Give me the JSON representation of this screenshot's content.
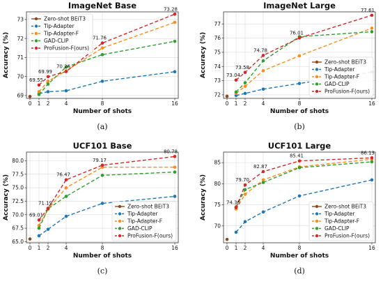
{
  "chart_data": [
    {
      "type": "line",
      "panel_label": "(a)",
      "title": "ImageNet Base",
      "xlabel": "Number of shots",
      "ylabel": "Accuracy (%)",
      "x_ticks": [
        0,
        1,
        2,
        4,
        8,
        16
      ],
      "y_ticks": [
        69,
        70,
        71,
        72,
        73
      ],
      "xlim": [
        0,
        16
      ],
      "ylim": [
        68.85,
        73.4
      ],
      "legend_position": "top-left",
      "series": [
        {
          "name": "Zero-shot BEiT3",
          "color": "#8c4a1e",
          "style": "solid",
          "x": [
            0
          ],
          "y": [
            68.95
          ]
        },
        {
          "name": "Tip-Adapter",
          "color": "#1f77b4",
          "style": "dashed",
          "x": [
            1,
            2,
            4,
            8,
            16
          ],
          "y": [
            69.1,
            69.2,
            69.25,
            69.75,
            70.25
          ]
        },
        {
          "name": "Tip-Adapter-F",
          "color": "#ff8c1a",
          "style": "dashed",
          "x": [
            1,
            2,
            4,
            8,
            16
          ],
          "y": [
            69.2,
            69.75,
            70.3,
            71.5,
            72.85
          ]
        },
        {
          "name": "GAD-CLIP",
          "color": "#2ca02c",
          "style": "dashed",
          "x": [
            1,
            2,
            4,
            8,
            16
          ],
          "y": [
            69.05,
            69.6,
            70.5,
            71.15,
            71.85
          ]
        },
        {
          "name": "ProFusion-F(ours)",
          "color": "#d62728",
          "style": "dashed",
          "x": [
            1,
            2,
            4,
            8,
            16
          ],
          "y": [
            69.55,
            69.99,
            70.26,
            71.76,
            73.28
          ]
        }
      ],
      "annotations": [
        {
          "x": 1,
          "y": 69.55,
          "text": "69.55"
        },
        {
          "x": 2,
          "y": 69.99,
          "text": "69.99"
        },
        {
          "x": 4,
          "y": 70.26,
          "text": "70.26"
        },
        {
          "x": 8,
          "y": 71.76,
          "text": "71.76"
        },
        {
          "x": 16,
          "y": 73.28,
          "text": "73.28"
        }
      ]
    },
    {
      "type": "line",
      "panel_label": "(b)",
      "title": "ImageNet Large",
      "xlabel": "Number of shots",
      "ylabel": "Accuracy (%)",
      "x_ticks": [
        0,
        1,
        2,
        4,
        8,
        16
      ],
      "y_ticks": [
        72,
        73,
        74,
        75,
        76,
        77
      ],
      "xlim": [
        0,
        16
      ],
      "ylim": [
        71.75,
        77.85
      ],
      "legend_position": "bottom-right",
      "series": [
        {
          "name": "Zero-shot BEiT3",
          "color": "#8c4a1e",
          "style": "solid",
          "x": [
            0
          ],
          "y": [
            71.9
          ]
        },
        {
          "name": "Tip-Adapter",
          "color": "#1f77b4",
          "style": "dashed",
          "x": [
            1,
            2,
            4,
            8,
            16
          ],
          "y": [
            71.95,
            72.1,
            72.4,
            72.8,
            73.6
          ]
        },
        {
          "name": "Tip-Adapter-F",
          "color": "#ff8c1a",
          "style": "dashed",
          "x": [
            1,
            2,
            4,
            8,
            16
          ],
          "y": [
            72.1,
            72.6,
            73.7,
            74.75,
            76.7
          ]
        },
        {
          "name": "GAD-CLIP",
          "color": "#2ca02c",
          "style": "dashed",
          "x": [
            1,
            2,
            4,
            8,
            16
          ],
          "y": [
            72.2,
            72.85,
            74.4,
            76.1,
            76.45
          ]
        },
        {
          "name": "ProFusion-F(ours)",
          "color": "#d62728",
          "style": "dashed",
          "x": [
            1,
            2,
            4,
            8,
            16
          ],
          "y": [
            73.04,
            73.58,
            74.78,
            76.01,
            77.61
          ]
        }
      ],
      "annotations": [
        {
          "x": 1,
          "y": 73.04,
          "text": "73.04"
        },
        {
          "x": 2,
          "y": 73.58,
          "text": "73.58"
        },
        {
          "x": 4,
          "y": 74.78,
          "text": "74.78"
        },
        {
          "x": 8,
          "y": 76.01,
          "text": "76.01"
        },
        {
          "x": 16,
          "y": 77.61,
          "text": "77.61"
        }
      ]
    },
    {
      "type": "line",
      "panel_label": "(c)",
      "title": "UCF101 Base",
      "xlabel": "Number of shots",
      "ylabel": "Accuracy (%)",
      "x_ticks": [
        0,
        1,
        2,
        4,
        8,
        16
      ],
      "y_ticks": [
        65.0,
        67.5,
        70.0,
        72.5,
        75.0,
        77.5,
        80.0
      ],
      "y_tick_labels": [
        "65.0",
        "67.5",
        "70.0",
        "72.5",
        "75.0",
        "77.5",
        "80.0"
      ],
      "xlim": [
        0,
        16
      ],
      "ylim": [
        64.8,
        81.6
      ],
      "legend_position": "bottom-right",
      "series": [
        {
          "name": "Zero-shot BEiT3",
          "color": "#8c4a1e",
          "style": "solid",
          "x": [
            0
          ],
          "y": [
            65.5
          ]
        },
        {
          "name": "Tip-Adapter",
          "color": "#1f77b4",
          "style": "dashed",
          "x": [
            1,
            2,
            4,
            8,
            16
          ],
          "y": [
            66.1,
            67.3,
            69.7,
            72.1,
            73.4
          ]
        },
        {
          "name": "Tip-Adapter-F",
          "color": "#ff8c1a",
          "style": "dashed",
          "x": [
            1,
            2,
            4,
            8,
            16
          ],
          "y": [
            68.0,
            71.0,
            75.0,
            78.8,
            78.8
          ]
        },
        {
          "name": "GAD-CLIP",
          "color": "#2ca02c",
          "style": "dashed",
          "x": [
            1,
            2,
            4,
            8,
            16
          ],
          "y": [
            67.5,
            71.1,
            73.4,
            77.3,
            77.9
          ]
        },
        {
          "name": "ProFusion-F(ours)",
          "color": "#d62728",
          "style": "dashed",
          "x": [
            1,
            2,
            4,
            8,
            16
          ],
          "y": [
            69.01,
            71.19,
            76.47,
            79.17,
            80.78
          ]
        }
      ],
      "annotations": [
        {
          "x": 1,
          "y": 69.01,
          "text": "69.01"
        },
        {
          "x": 2,
          "y": 71.19,
          "text": "71.19"
        },
        {
          "x": 4,
          "y": 76.47,
          "text": "76.47"
        },
        {
          "x": 8,
          "y": 79.17,
          "text": "79.17"
        },
        {
          "x": 16,
          "y": 80.78,
          "text": "80.78"
        }
      ]
    },
    {
      "type": "line",
      "panel_label": "(d)",
      "title": "UCF101 Large",
      "xlabel": "Number of shots",
      "ylabel": "Accuracy (%)",
      "x_ticks": [
        0,
        1,
        2,
        4,
        8,
        16
      ],
      "y_ticks": [
        70,
        75,
        80,
        85
      ],
      "xlim": [
        0,
        16
      ],
      "ylim": [
        66.0,
        87.5
      ],
      "legend_position": "bottom-right",
      "series": [
        {
          "name": "Zero-shot BEiT3",
          "color": "#8c4a1e",
          "style": "solid",
          "x": [
            0
          ],
          "y": [
            66.8
          ]
        },
        {
          "name": "Tip-Adapter",
          "color": "#1f77b4",
          "style": "dashed",
          "x": [
            1,
            2,
            4,
            8,
            16
          ],
          "y": [
            68.5,
            71.0,
            73.3,
            77.1,
            80.9
          ]
        },
        {
          "name": "Tip-Adapter-F",
          "color": "#ff8c1a",
          "style": "dashed",
          "x": [
            1,
            2,
            4,
            8,
            16
          ],
          "y": [
            74.0,
            77.5,
            80.9,
            84.0,
            85.8
          ]
        },
        {
          "name": "GAD-CLIP",
          "color": "#2ca02c",
          "style": "dashed",
          "x": [
            1,
            2,
            4,
            8,
            16
          ],
          "y": [
            74.5,
            78.6,
            80.3,
            83.8,
            85.2
          ]
        },
        {
          "name": "ProFusion-F(ours)",
          "color": "#d62728",
          "style": "dashed",
          "x": [
            1,
            2,
            4,
            8,
            16
          ],
          "y": [
            74.36,
            79.7,
            82.87,
            85.41,
            86.13
          ]
        }
      ],
      "annotations": [
        {
          "x": 1,
          "y": 74.36,
          "text": "74.36"
        },
        {
          "x": 2,
          "y": 79.7,
          "text": "79.70"
        },
        {
          "x": 4,
          "y": 82.87,
          "text": "82.87"
        },
        {
          "x": 8,
          "y": 85.41,
          "text": "85.41"
        },
        {
          "x": 16,
          "y": 86.13,
          "text": "86.13"
        }
      ]
    }
  ]
}
